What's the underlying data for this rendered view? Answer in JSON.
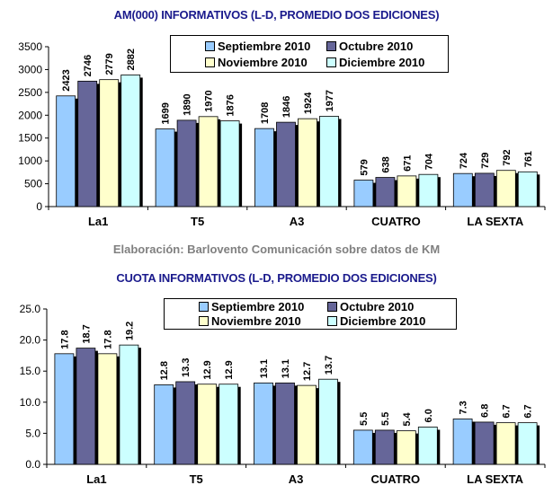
{
  "chart_data": [
    {
      "type": "bar",
      "title": "AM(000) INFORMATIVOS (L-D, PROMEDIO DOS EDICIONES)",
      "xlabel": "",
      "ylabel": "",
      "categories": [
        "La1",
        "T5",
        "A3",
        "CUATRO",
        "LA SEXTA"
      ],
      "ylim": [
        0,
        3500
      ],
      "yticks": [
        "0",
        "500",
        "1000",
        "1500",
        "2000",
        "2500",
        "3000",
        "3500"
      ],
      "ytick_values": [
        0,
        500,
        1000,
        1500,
        2000,
        2500,
        3000,
        3500
      ],
      "legend_position": "top-right",
      "grid": false,
      "series": [
        {
          "name": "Septiembre 2010",
          "color": "#99ccff",
          "values": [
            2423,
            1699,
            1708,
            579,
            724
          ],
          "labels": [
            "2423",
            "1699",
            "1708",
            "579",
            "724"
          ]
        },
        {
          "name": "Octubre 2010",
          "color": "#666699",
          "values": [
            2746,
            1890,
            1846,
            638,
            729
          ],
          "labels": [
            "2746",
            "1890",
            "1846",
            "638",
            "729"
          ]
        },
        {
          "name": "Noviembre 2010",
          "color": "#ffffcc",
          "values": [
            2779,
            1970,
            1924,
            671,
            792
          ],
          "labels": [
            "2779",
            "1970",
            "1924",
            "671",
            "792"
          ]
        },
        {
          "name": "Diciembre 2010",
          "color": "#ccffff",
          "values": [
            2882,
            1876,
            1977,
            704,
            761
          ],
          "labels": [
            "2882",
            "1876",
            "1977",
            "704",
            "761"
          ]
        }
      ]
    },
    {
      "type": "bar",
      "title": "CUOTA INFORMATIVOS (L-D, PROMEDIO DOS EDICIONES)",
      "xlabel": "",
      "ylabel": "",
      "categories": [
        "La1",
        "T5",
        "A3",
        "CUATRO",
        "LA SEXTA"
      ],
      "ylim": [
        0,
        25
      ],
      "yticks": [
        "0.0",
        "5.0",
        "10.0",
        "15.0",
        "20.0",
        "25.0"
      ],
      "ytick_values": [
        0,
        5,
        10,
        15,
        20,
        25
      ],
      "legend_position": "top-right",
      "grid": false,
      "series": [
        {
          "name": "Septiembre 2010",
          "color": "#99ccff",
          "values": [
            17.8,
            12.8,
            13.1,
            5.5,
            7.3
          ],
          "labels": [
            "17.8",
            "12.8",
            "13.1",
            "5.5",
            "7.3"
          ]
        },
        {
          "name": "Octubre 2010",
          "color": "#666699",
          "values": [
            18.7,
            13.3,
            13.1,
            5.5,
            6.8
          ],
          "labels": [
            "18.7",
            "13.3",
            "13.1",
            "5.5",
            "6.8"
          ]
        },
        {
          "name": "Noviembre 2010",
          "color": "#ffffcc",
          "values": [
            17.8,
            12.9,
            12.7,
            5.4,
            6.7
          ],
          "labels": [
            "17.8",
            "12.9",
            "12.7",
            "5.4",
            "6.7"
          ]
        },
        {
          "name": "Diciembre 2010",
          "color": "#ccffff",
          "values": [
            19.2,
            12.9,
            13.7,
            6.0,
            6.7
          ],
          "labels": [
            "19.2",
            "12.9",
            "13.7",
            "6.0",
            "6.7"
          ]
        }
      ]
    }
  ],
  "credit": "Elaboración: Barlovento Comunicación sobre datos de KM"
}
